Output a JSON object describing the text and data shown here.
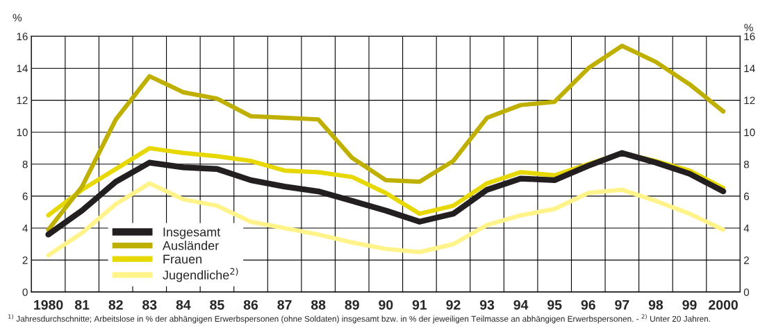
{
  "chart_data": {
    "type": "line",
    "categories": [
      "1980",
      "81",
      "82",
      "83",
      "84",
      "85",
      "86",
      "87",
      "88",
      "89",
      "90",
      "91",
      "92",
      "93",
      "94",
      "95",
      "96",
      "97",
      "98",
      "99",
      "2000"
    ],
    "series": [
      {
        "name": "Insgesamt",
        "color": "#231f20",
        "values": [
          3.6,
          5.1,
          6.9,
          8.1,
          7.8,
          7.7,
          7.0,
          6.6,
          6.3,
          5.7,
          5.1,
          4.4,
          4.9,
          6.4,
          7.1,
          7.0,
          7.9,
          8.7,
          8.1,
          7.4,
          6.3
        ]
      },
      {
        "name": "Ausländer",
        "color": "#bfb000",
        "values": [
          3.9,
          6.6,
          10.8,
          13.5,
          12.5,
          12.1,
          11.0,
          10.9,
          10.8,
          8.4,
          7.0,
          6.9,
          8.2,
          10.9,
          11.7,
          11.9,
          14.0,
          15.4,
          14.4,
          13.0,
          11.3
        ]
      },
      {
        "name": "Frauen",
        "color": "#e6d800",
        "values": [
          4.8,
          6.4,
          7.7,
          9.0,
          8.7,
          8.5,
          8.2,
          7.6,
          7.5,
          7.2,
          6.2,
          4.9,
          5.4,
          6.8,
          7.5,
          7.3,
          8.0,
          8.7,
          8.2,
          7.6,
          6.5
        ]
      },
      {
        "name": "Jugendliche$^{2)}$",
        "color": "#fff38a",
        "values": [
          2.3,
          3.7,
          5.5,
          6.8,
          5.8,
          5.4,
          4.4,
          4.0,
          3.6,
          3.1,
          2.7,
          2.5,
          3.0,
          4.2,
          4.8,
          5.2,
          6.2,
          6.4,
          5.7,
          4.9,
          3.9
        ]
      }
    ],
    "ylabel": "%",
    "y2label": "%",
    "ylim": [
      0,
      16
    ],
    "yticks": [
      0,
      2,
      4,
      6,
      8,
      10,
      12,
      14,
      16
    ],
    "y2lim": [
      0,
      16
    ],
    "y2ticks": [
      0,
      2,
      4,
      6,
      8,
      10,
      12,
      14,
      16
    ],
    "grid": true,
    "legend": "bottom left",
    "marker": "none",
    "line_style": "solid",
    "annotations": [
      "$^{1)}$ Jahresdurchschnitte; Arbeitslose in % der abhängigen Erwerbspersonen (ohne Soldaten) insgesamt bzw. in % der jeweiligen Teilmasse an abhängigen Erwerbspersonen. - $^{2)}$ Unter 20 Jahren."
    ]
  }
}
